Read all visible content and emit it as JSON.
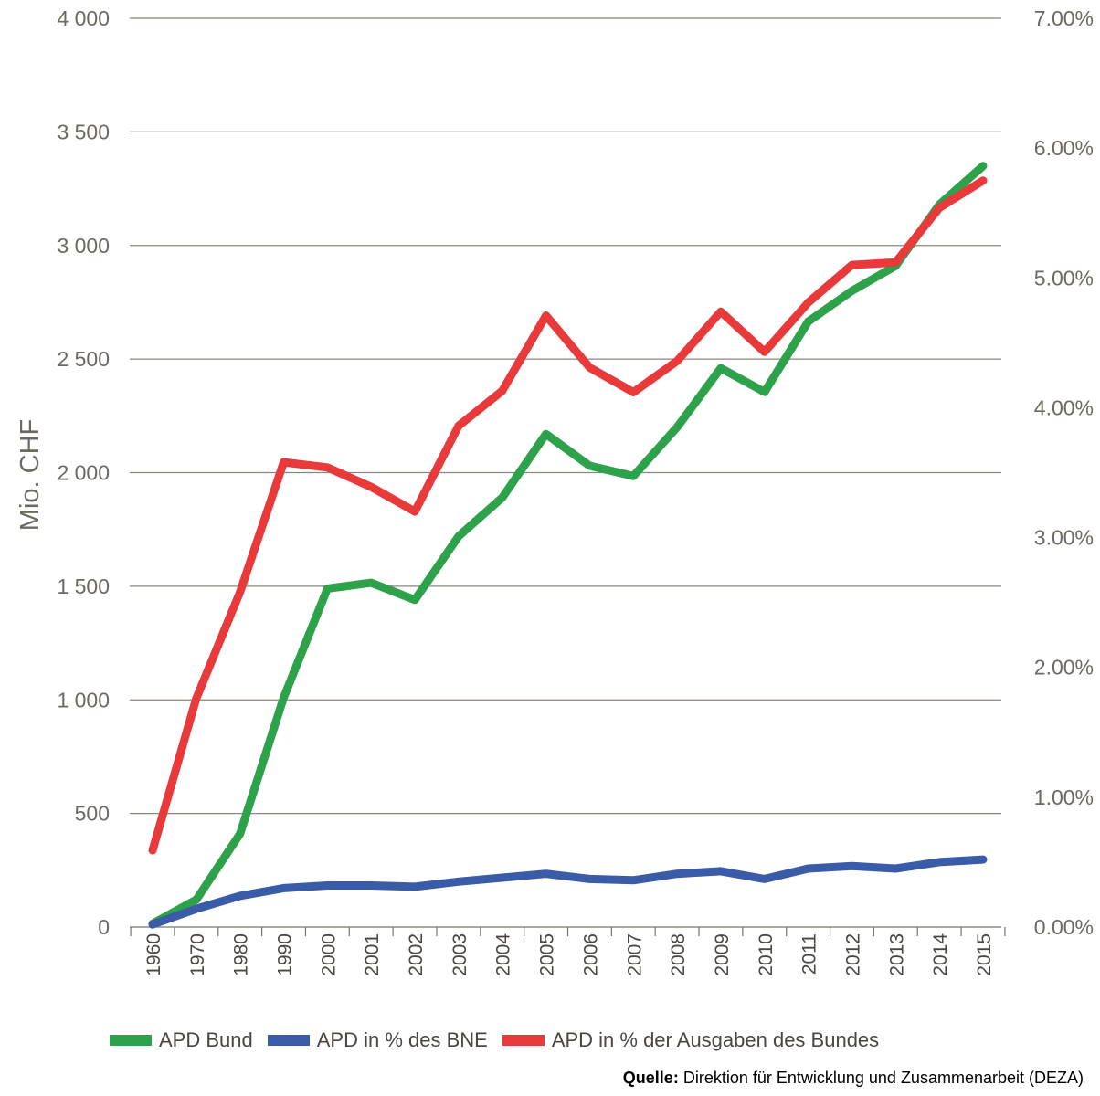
{
  "chart_data": {
    "type": "line",
    "title": "",
    "ylabel": "Mio. CHF",
    "ylim": [
      0,
      4000
    ],
    "y_ticks": [
      "0",
      "500",
      "1 000",
      "1 500",
      "2 000",
      "2 500",
      "3 000",
      "3 500",
      "4 000"
    ],
    "y2lim": [
      0,
      7
    ],
    "y2_ticks": [
      "0.00%",
      "1.00%",
      "2.00%",
      "3.00%",
      "4.00%",
      "5.00%",
      "6.00%",
      "7.00%"
    ],
    "categories": [
      "1960",
      "1970",
      "1980",
      "1990",
      "2000",
      "2001",
      "2002",
      "2003",
      "2004",
      "2005",
      "2006",
      "2007",
      "2008",
      "2009",
      "2010",
      "2011",
      "2012",
      "2013",
      "2014",
      "2015"
    ],
    "grid": true,
    "legend_position": "bottom",
    "series": [
      {
        "name": "APD Bund",
        "color": "#2da24a",
        "axis": "left",
        "values": [
          15,
          120,
          410,
          1010,
          1490,
          1515,
          1440,
          1720,
          1890,
          2170,
          2030,
          1985,
          2200,
          2460,
          2355,
          2665,
          2800,
          2910,
          3180,
          3350
        ]
      },
      {
        "name": "APD in % des BNE",
        "color": "#3a5ca8",
        "axis": "right",
        "values": [
          0.02,
          0.14,
          0.24,
          0.3,
          0.32,
          0.32,
          0.31,
          0.35,
          0.38,
          0.41,
          0.37,
          0.36,
          0.41,
          0.43,
          0.37,
          0.45,
          0.47,
          0.45,
          0.5,
          0.52
        ]
      },
      {
        "name": "APD in % der Ausgaben des Bundes",
        "color": "#e83a3a",
        "axis": "right",
        "values": [
          0.59,
          1.76,
          2.58,
          3.58,
          3.54,
          3.39,
          3.2,
          3.86,
          4.13,
          4.71,
          4.31,
          4.12,
          4.36,
          4.74,
          4.43,
          4.81,
          5.1,
          5.12,
          5.54,
          5.75
        ]
      }
    ]
  },
  "source": {
    "label": "Quelle:",
    "text": "Direktion für Entwicklung und Zusammenarbeit (DEZA)"
  }
}
